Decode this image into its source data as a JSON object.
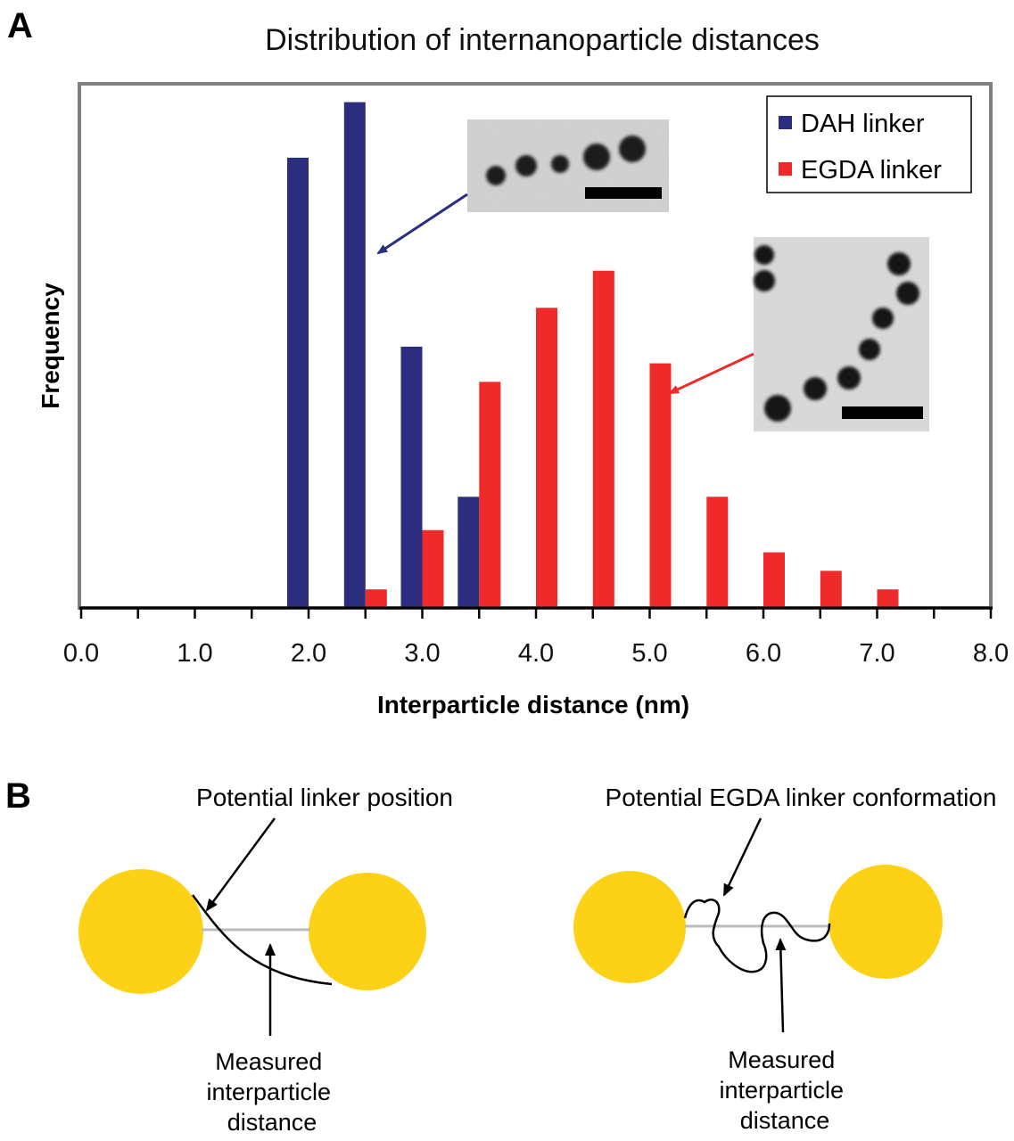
{
  "panel_a": {
    "letter": "A",
    "inset_left_name": "DAH linker nanoparticle chain micrograph",
    "inset_right_name": "EGDA linker nanoparticle chain micrograph"
  },
  "panel_b": {
    "letter": "B",
    "left_annotation_top": "Potential linker position",
    "left_annotation_bottom": [
      "Measured",
      "interparticle",
      "distance"
    ],
    "right_annotation_top": "Potential EGDA linker conformation",
    "right_annotation_bottom": [
      "Measured",
      "interparticle",
      "distance"
    ]
  },
  "colors": {
    "dah": "#2b2e7f",
    "egda": "#ee2a2a",
    "frame": "#808080",
    "particle": "#fcd116",
    "distance_line": "#bbbbbb"
  },
  "chart_data": {
    "type": "bar",
    "title": "Distribution of internanoparticle distances",
    "xlabel": "Interparticle distance (nm)",
    "ylabel": "Frequency",
    "xlim": [
      0,
      8
    ],
    "ylim": [
      0,
      28
    ],
    "x_ticks": [
      "0.0",
      "1.0",
      "2.0",
      "3.0",
      "4.0",
      "5.0",
      "6.0",
      "7.0",
      "8.0"
    ],
    "y_tick_labels_shown": false,
    "legend_position": "top-right",
    "series": [
      {
        "name": "DAH linker",
        "color": "#2b2e7f",
        "x": [
          2.0,
          2.5,
          3.0,
          3.5
        ],
        "values": [
          24.3,
          27.3,
          14.1,
          6.0
        ]
      },
      {
        "name": "EGDA linker",
        "color": "#ee2a2a",
        "x": [
          2.5,
          3.0,
          3.5,
          4.0,
          4.5,
          5.0,
          5.5,
          6.0,
          6.5,
          7.0
        ],
        "values": [
          1.0,
          4.2,
          12.2,
          16.2,
          18.2,
          13.2,
          6.0,
          3.0,
          2.0,
          1.0
        ]
      }
    ]
  }
}
